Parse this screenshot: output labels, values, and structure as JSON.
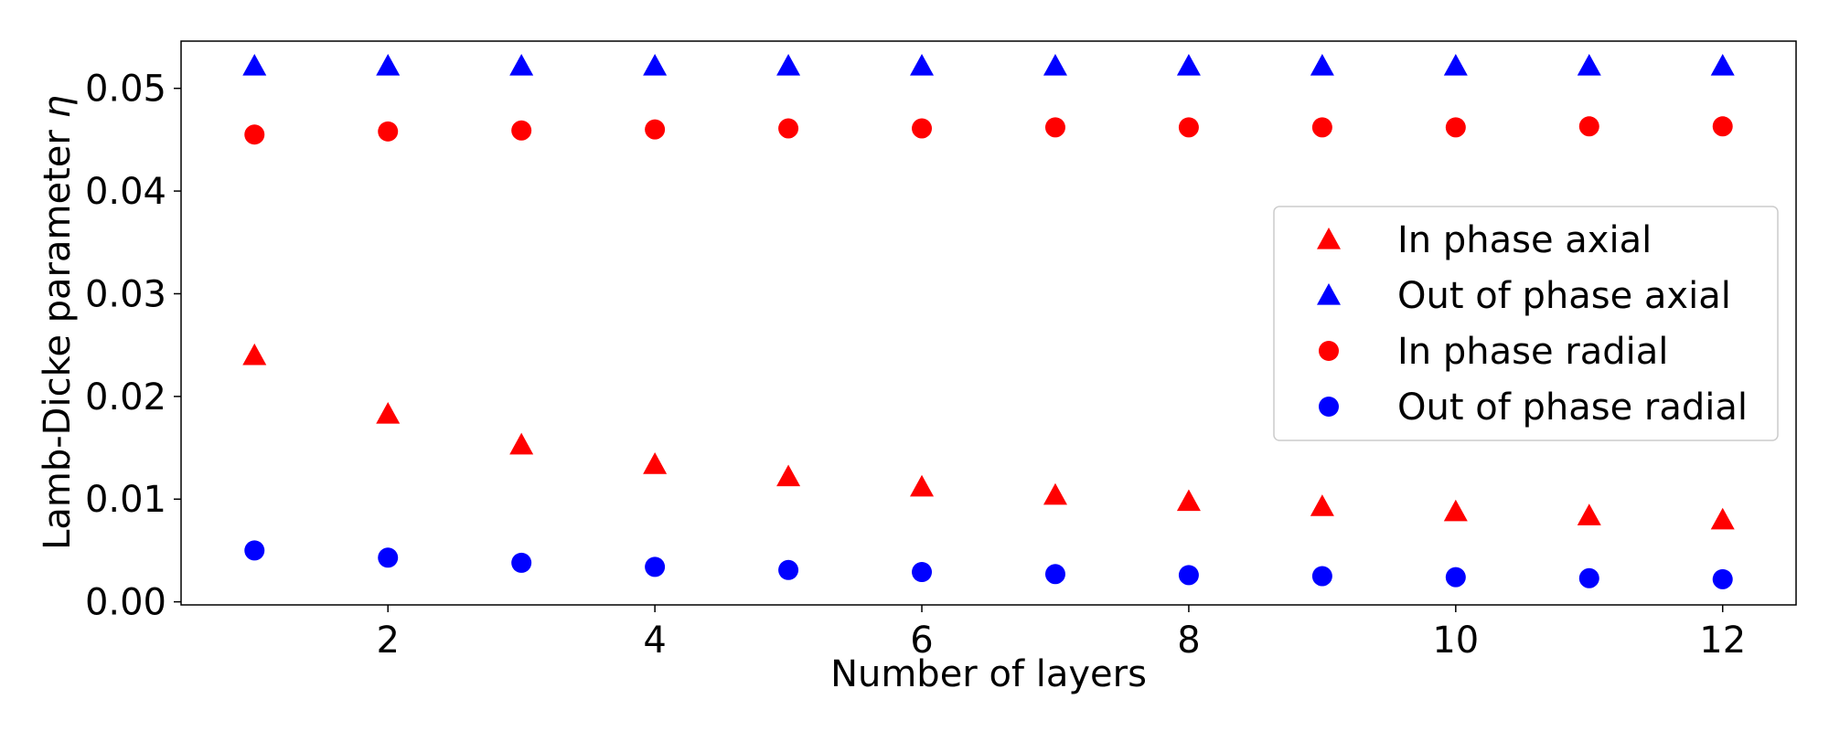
{
  "chart_data": {
    "type": "scatter",
    "title": "",
    "xlabel": "Number of layers",
    "ylabel_prefix": "Lamb-Dicke parameter ",
    "ylabel_symbol": "η",
    "xlim": [
      0.45,
      12.55
    ],
    "ylim": [
      -0.0003,
      0.0546
    ],
    "xticks": [
      2,
      4,
      6,
      8,
      10,
      12
    ],
    "xtick_labels": [
      "2",
      "4",
      "6",
      "8",
      "10",
      "12"
    ],
    "yticks": [
      0.0,
      0.01,
      0.02,
      0.03,
      0.04,
      0.05
    ],
    "ytick_labels": [
      "0.00",
      "0.01",
      "0.02",
      "0.03",
      "0.04",
      "0.05"
    ],
    "grid": false,
    "legend_position": "center-right",
    "x": [
      1,
      2,
      3,
      4,
      5,
      6,
      7,
      8,
      9,
      10,
      11,
      12
    ],
    "series": [
      {
        "name": "In phase axial",
        "marker": "triangle",
        "color": "#ff0000",
        "values": [
          0.024,
          0.0183,
          0.0153,
          0.0134,
          0.0122,
          0.0112,
          0.0104,
          0.0098,
          0.0093,
          0.0088,
          0.0084,
          0.008
        ]
      },
      {
        "name": "Out of phase axial",
        "marker": "triangle",
        "color": "#0000ff",
        "values": [
          0.0522,
          0.0522,
          0.0522,
          0.0522,
          0.0522,
          0.0522,
          0.0522,
          0.0522,
          0.0522,
          0.0522,
          0.0522,
          0.0522
        ]
      },
      {
        "name": "In phase radial",
        "marker": "circle",
        "color": "#ff0000",
        "values": [
          0.0455,
          0.0458,
          0.0459,
          0.046,
          0.0461,
          0.0461,
          0.0462,
          0.0462,
          0.0462,
          0.0462,
          0.0463,
          0.0463
        ]
      },
      {
        "name": "Out of phase radial",
        "marker": "circle",
        "color": "#0000ff",
        "values": [
          0.005,
          0.0043,
          0.0038,
          0.0034,
          0.0031,
          0.0029,
          0.0027,
          0.0026,
          0.0025,
          0.0024,
          0.0023,
          0.0022
        ]
      }
    ]
  }
}
